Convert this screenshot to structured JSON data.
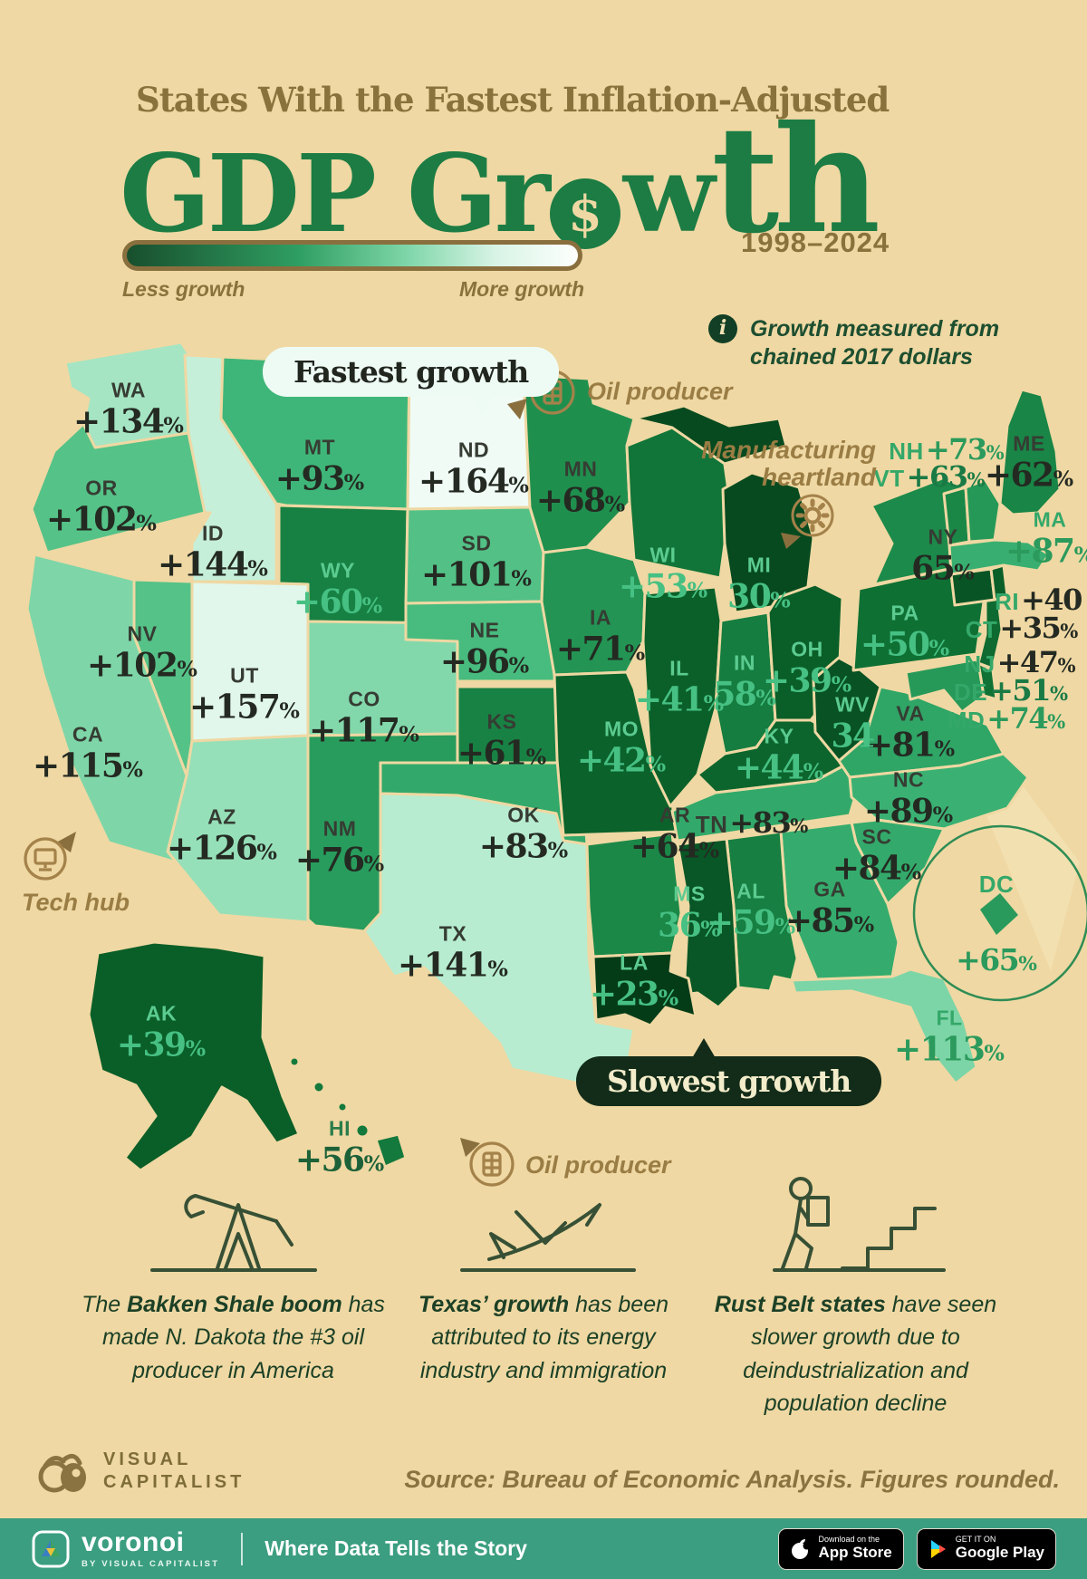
{
  "header": {
    "subtitle": "States With the Fastest Inflation-Adjusted",
    "title": {
      "p1": "GDP Gr",
      "dollar": "$",
      "p2": "w",
      "p3": "th"
    },
    "period": "1998–2024"
  },
  "legend": {
    "less": "Less growth",
    "more": "More growth",
    "gradient": [
      "#184f2d",
      "#2f9e62",
      "#7ed6a8",
      "#fdfffd"
    ]
  },
  "note": {
    "line1": "Growth measured from",
    "line2": "chained 2017 dollars"
  },
  "callouts": {
    "fastest": "Fastest growth",
    "slowest": "Slowest growth",
    "oil_top": "Oil producer",
    "oil_bottom": "Oil producer",
    "manufacturing1": "Manufacturing",
    "manufacturing2": "heartland",
    "tech_hub": "Tech hub"
  },
  "map": {
    "states": [
      {
        "abbr": "WA",
        "value": "+134%",
        "pct": 134,
        "fill": "#a5e5c3",
        "tone": "dark"
      },
      {
        "abbr": "OR",
        "value": "+102%",
        "pct": 102,
        "fill": "#55c288",
        "tone": "dark"
      },
      {
        "abbr": "CA",
        "value": "+115%",
        "pct": 115,
        "fill": "#7ed6a8",
        "tone": "dark"
      },
      {
        "abbr": "NV",
        "value": "+102%",
        "pct": 102,
        "fill": "#55c288",
        "tone": "dark"
      },
      {
        "abbr": "ID",
        "value": "+144%",
        "pct": 144,
        "fill": "#c6efd9",
        "tone": "dark"
      },
      {
        "abbr": "UT",
        "value": "+157%",
        "pct": 157,
        "fill": "#e2f7ec",
        "tone": "dark"
      },
      {
        "abbr": "AZ",
        "value": "+126%",
        "pct": 126,
        "fill": "#96e0b9",
        "tone": "dark"
      },
      {
        "abbr": "MT",
        "value": "+93%",
        "pct": 93,
        "fill": "#3fb679",
        "tone": "dark"
      },
      {
        "abbr": "WY",
        "value": "+60%",
        "pct": 60,
        "fill": "#178143",
        "tone": "light"
      },
      {
        "abbr": "CO",
        "value": "+117%",
        "pct": 117,
        "fill": "#82d8ab",
        "tone": "dark"
      },
      {
        "abbr": "NM",
        "value": "+76%",
        "pct": 76,
        "fill": "#289c5d",
        "tone": "dark"
      },
      {
        "abbr": "ND",
        "value": "+164%",
        "pct": 164,
        "fill": "#f0fbf5",
        "tone": "dark"
      },
      {
        "abbr": "SD",
        "value": "+101%",
        "pct": 101,
        "fill": "#53c186",
        "tone": "dark"
      },
      {
        "abbr": "NE",
        "value": "+96%",
        "pct": 96,
        "fill": "#48bb7e",
        "tone": "dark"
      },
      {
        "abbr": "KS",
        "value": "+61%",
        "pct": 61,
        "fill": "#188244",
        "tone": "dark"
      },
      {
        "abbr": "OK",
        "value": "+83%",
        "pct": 83,
        "fill": "#32a96a",
        "tone": "dark"
      },
      {
        "abbr": "TX",
        "value": "+141%",
        "pct": 141,
        "fill": "#b7ecd0",
        "tone": "dark"
      },
      {
        "abbr": "MN",
        "value": "+68%",
        "pct": 68,
        "fill": "#1f8f4e",
        "tone": "dark"
      },
      {
        "abbr": "IA",
        "value": "+71%",
        "pct": 71,
        "fill": "#239454",
        "tone": "dark"
      },
      {
        "abbr": "MO",
        "value": "+42%",
        "pct": 42,
        "fill": "#0b622b",
        "tone": "light"
      },
      {
        "abbr": "AR",
        "value": "+64%",
        "pct": 64,
        "fill": "#1b8848",
        "tone": "dark"
      },
      {
        "abbr": "LA",
        "value": "+23%",
        "pct": 23,
        "fill": "#053c18",
        "tone": "light"
      },
      {
        "abbr": "WI",
        "value": "+53%",
        "pct": 53,
        "fill": "#117438",
        "tone": "light"
      },
      {
        "abbr": "IL",
        "value": "+41%",
        "pct": 41,
        "fill": "#0b6029",
        "tone": "light"
      },
      {
        "abbr": "IN",
        "value": "58%",
        "pct": 58,
        "fill": "#157d40",
        "tone": "light"
      },
      {
        "abbr": "MI",
        "value": "30%",
        "pct": 30,
        "fill": "#074a1f",
        "tone": "light"
      },
      {
        "abbr": "OH",
        "value": "+39%",
        "pct": 39,
        "fill": "#0a5e28",
        "tone": "light"
      },
      {
        "abbr": "KY",
        "value": "+44%",
        "pct": 44,
        "fill": "#0c652d",
        "tone": "light"
      },
      {
        "abbr": "TN",
        "value": "+83%",
        "pct": 83,
        "fill": "#32a96a",
        "tone": "dark"
      },
      {
        "abbr": "MS",
        "value": "36%",
        "pct": 36,
        "fill": "#095626",
        "tone": "light"
      },
      {
        "abbr": "AL",
        "value": "+59%",
        "pct": 59,
        "fill": "#167f41",
        "tone": "light"
      },
      {
        "abbr": "GA",
        "value": "+85%",
        "pct": 85,
        "fill": "#35ac6d",
        "tone": "dark"
      },
      {
        "abbr": "FL",
        "value": "+113%",
        "pct": 113,
        "fill": "#7cd5a7",
        "tone": "green"
      },
      {
        "abbr": "SC",
        "value": "+84%",
        "pct": 84,
        "fill": "#33aa6b",
        "tone": "dark"
      },
      {
        "abbr": "NC",
        "value": "+89%",
        "pct": 89,
        "fill": "#3ab173",
        "tone": "dark"
      },
      {
        "abbr": "VA",
        "value": "+81%",
        "pct": 81,
        "fill": "#2fa566",
        "tone": "dark"
      },
      {
        "abbr": "WV",
        "value": "34",
        "pct": 34,
        "fill": "#085224",
        "tone": "light"
      },
      {
        "abbr": "PA",
        "value": "+50%",
        "pct": 50,
        "fill": "#0f7034",
        "tone": "light"
      },
      {
        "abbr": "NY",
        "value": "65%",
        "pct": 65,
        "fill": "#1c8a4a",
        "tone": "dark"
      },
      {
        "abbr": "NJ",
        "value": "+47%",
        "pct": 47,
        "fill": "#0e6a31",
        "tone": "greenmix"
      },
      {
        "abbr": "DE",
        "value": "+51%",
        "pct": 51,
        "fill": "#107135",
        "tone": "greendark"
      },
      {
        "abbr": "MD",
        "value": "+74%",
        "pct": 74,
        "fill": "#269959",
        "tone": "green"
      },
      {
        "abbr": "DC",
        "value": "+65%",
        "pct": 65,
        "fill": "#2a9a5c",
        "tone": "green"
      },
      {
        "abbr": "CT",
        "value": "+35%",
        "pct": 35,
        "fill": "#095425",
        "tone": "greenmix"
      },
      {
        "abbr": "RI",
        "value": "+40",
        "pct": 40,
        "fill": "#0a5f29",
        "tone": "greenmix"
      },
      {
        "abbr": "MA",
        "value": "+87%",
        "pct": 87,
        "fill": "#38af70",
        "tone": "green"
      },
      {
        "abbr": "VT",
        "value": "+63%",
        "pct": 63,
        "fill": "#1a8747",
        "tone": "greendark"
      },
      {
        "abbr": "NH",
        "value": "+73%",
        "pct": 73,
        "fill": "#259857",
        "tone": "green"
      },
      {
        "abbr": "ME",
        "value": "+62%",
        "pct": 62,
        "fill": "#198546",
        "tone": "dark"
      },
      {
        "abbr": "AK",
        "value": "+39%",
        "pct": 39,
        "fill": "#0a5e28",
        "tone": "light"
      },
      {
        "abbr": "HI",
        "value": "+56%",
        "pct": 56,
        "fill": "#13793c",
        "tone": "hi"
      }
    ]
  },
  "chart_data": {
    "type": "heatmap",
    "subtype": "us-choropleth",
    "title": "States With the Fastest Inflation-Adjusted GDP Growth",
    "period": "1998–2024",
    "unit": "percent real GDP growth, chained 2017 dollars",
    "legend": {
      "min_label": "Less growth",
      "max_label": "More growth"
    },
    "categories": [
      "WA",
      "OR",
      "CA",
      "NV",
      "ID",
      "UT",
      "AZ",
      "MT",
      "WY",
      "CO",
      "NM",
      "ND",
      "SD",
      "NE",
      "KS",
      "OK",
      "TX",
      "MN",
      "IA",
      "MO",
      "AR",
      "LA",
      "WI",
      "IL",
      "IN",
      "MI",
      "OH",
      "KY",
      "TN",
      "MS",
      "AL",
      "GA",
      "FL",
      "SC",
      "NC",
      "VA",
      "WV",
      "PA",
      "NY",
      "NJ",
      "DE",
      "MD",
      "DC",
      "CT",
      "RI",
      "MA",
      "VT",
      "NH",
      "ME",
      "AK",
      "HI"
    ],
    "values": [
      134,
      102,
      115,
      102,
      144,
      157,
      126,
      93,
      60,
      117,
      76,
      164,
      101,
      96,
      61,
      83,
      141,
      68,
      71,
      42,
      64,
      23,
      53,
      41,
      58,
      30,
      39,
      44,
      83,
      36,
      59,
      85,
      113,
      84,
      89,
      81,
      34,
      50,
      65,
      47,
      51,
      74,
      65,
      35,
      40,
      87,
      63,
      73,
      62,
      39,
      56
    ]
  },
  "annotations": [
    {
      "icon": "oil-pump-icon",
      "prefix": "The ",
      "bold": "Bakken Shale boom",
      "suffix": " has made N. Dakota the #3 oil producer in America"
    },
    {
      "icon": "airplane-icon",
      "prefix": "",
      "bold": "Texas’ growth",
      "suffix": " has been attributed to its energy industry and immigration"
    },
    {
      "icon": "person-stairs-icon",
      "prefix": "",
      "bold": "Rust Belt states",
      "suffix": " have seen slower growth due to deindustrialization and population decline"
    }
  ],
  "footer": {
    "brand_line1": "VISUAL",
    "brand_line2": "CAPITALIST",
    "source": "Source: Bureau of Economic Analysis. Figures rounded."
  },
  "bottom_bar": {
    "logo_text": "voronoi",
    "byline": "BY VISUAL CAPITALIST",
    "tagline": "Where Data Tells the Story",
    "appstore_pre": "Download on the",
    "appstore": "App Store",
    "play_pre": "GET IT ON",
    "play": "Google Play"
  }
}
